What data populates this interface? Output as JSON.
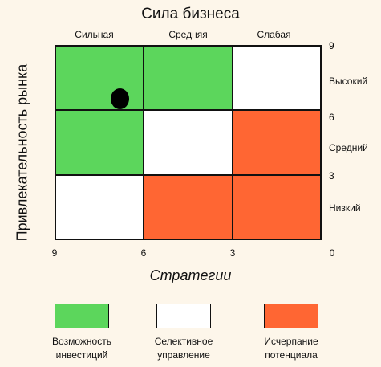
{
  "title": "Сила бизнеса",
  "y_axis_title": "Привлекательность рынка",
  "x_axis_title": "Стратегии",
  "columns": [
    "Сильная",
    "Средняя",
    "Слабая"
  ],
  "rows": [
    "Высокий",
    "Средний",
    "Низкий"
  ],
  "right_ticks": [
    "9",
    "6",
    "3"
  ],
  "bottom_ticks": [
    "9",
    "6",
    "3",
    "0"
  ],
  "colors": {
    "green": "#5cd65c",
    "white": "#ffffff",
    "orange": "#ff6633",
    "background": "#fdf6ea"
  },
  "matrix": [
    [
      "green",
      "green",
      "white"
    ],
    [
      "green",
      "white",
      "orange"
    ],
    [
      "white",
      "orange",
      "orange"
    ]
  ],
  "marker": {
    "shape": "black-dot",
    "cell": "Сильная / Высокий"
  },
  "legend": [
    {
      "color": "green",
      "lines": [
        "Возможность",
        "инвестиций"
      ]
    },
    {
      "color": "white",
      "lines": [
        "Селективное",
        "управление"
      ]
    },
    {
      "color": "orange",
      "lines": [
        "Исчерпание",
        "потенциала"
      ]
    }
  ]
}
